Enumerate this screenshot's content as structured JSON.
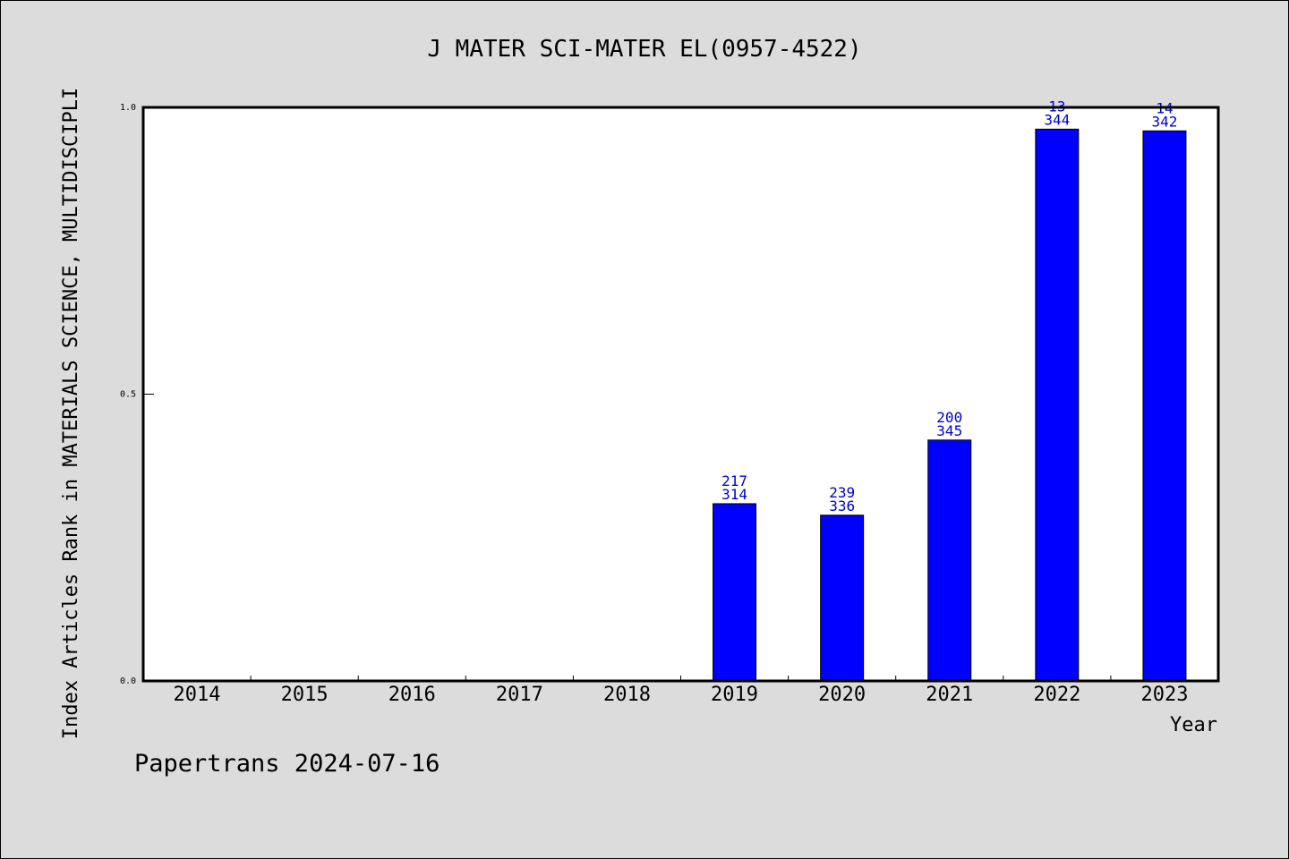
{
  "chart_data": {
    "type": "bar",
    "title": "J MATER SCI-MATER EL(0957-4522)",
    "xlabel": "Year",
    "ylabel": "Index Articles Rank in MATERIALS SCIENCE, MULTIDISCIPLI",
    "categories": [
      "2014",
      "2015",
      "2016",
      "2017",
      "2018",
      "2019",
      "2020",
      "2021",
      "2022",
      "2023"
    ],
    "values": [
      null,
      null,
      null,
      null,
      null,
      0.309,
      0.289,
      0.42,
      0.962,
      0.959
    ],
    "labels_top": [
      "",
      "",
      "",
      "",
      "",
      "217",
      "239",
      "200",
      "13",
      "14"
    ],
    "labels_bottom": [
      "",
      "",
      "",
      "",
      "",
      "314",
      "336",
      "345",
      "344",
      "342"
    ],
    "ylim": [
      0,
      1.0
    ],
    "yticks": [
      "0.0",
      "0.5",
      "1.0"
    ],
    "grid": false,
    "bar_color": "#0000ff",
    "label_color": "#0000cc"
  },
  "footer": "Papertrans 2024-07-16"
}
